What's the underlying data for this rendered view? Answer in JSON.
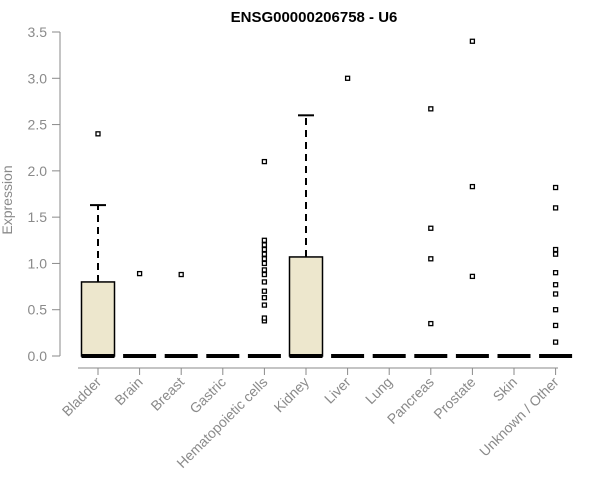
{
  "chart_data": {
    "type": "boxplot",
    "title": "ENSG00000206758 - U6",
    "xlabel": "",
    "ylabel": "Expression",
    "ylim": [
      0,
      3.5
    ],
    "yticks": [
      "0.0",
      "0.5",
      "1.0",
      "1.5",
      "2.0",
      "2.5",
      "3.0",
      "3.5"
    ],
    "grid": false,
    "categories": [
      "Bladder",
      "Brain",
      "Breast",
      "Gastric",
      "Hematopoietic cells",
      "Kidney",
      "Liver",
      "Lung",
      "Pancreas",
      "Prostate",
      "Skin",
      "Unknown / Other"
    ],
    "boxes": [
      {
        "q1": 0,
        "median": 0,
        "q3": 0.8,
        "whisker_low": 0,
        "whisker_high": 1.63,
        "outliers": [
          2.4
        ]
      },
      {
        "q1": 0,
        "median": 0,
        "q3": 0,
        "whisker_low": 0,
        "whisker_high": 0,
        "outliers": [
          0.89
        ]
      },
      {
        "q1": 0,
        "median": 0,
        "q3": 0,
        "whisker_low": 0,
        "whisker_high": 0,
        "outliers": [
          0.88
        ]
      },
      {
        "q1": 0,
        "median": 0,
        "q3": 0,
        "whisker_low": 0,
        "whisker_high": 0,
        "outliers": []
      },
      {
        "q1": 0,
        "median": 0,
        "q3": 0,
        "whisker_low": 0,
        "whisker_high": 0,
        "outliers": [
          0.38,
          0.41,
          0.55,
          0.63,
          0.7,
          0.8,
          0.88,
          0.93,
          1.0,
          1.05,
          1.1,
          1.15,
          1.2,
          1.25,
          2.1
        ]
      },
      {
        "q1": 0,
        "median": 0,
        "q3": 1.07,
        "whisker_low": 0,
        "whisker_high": 2.6,
        "outliers": []
      },
      {
        "q1": 0,
        "median": 0,
        "q3": 0,
        "whisker_low": 0,
        "whisker_high": 0,
        "outliers": [
          3.0
        ]
      },
      {
        "q1": 0,
        "median": 0,
        "q3": 0,
        "whisker_low": 0,
        "whisker_high": 0,
        "outliers": []
      },
      {
        "q1": 0,
        "median": 0,
        "q3": 0,
        "whisker_low": 0,
        "whisker_high": 0,
        "outliers": [
          0.35,
          1.05,
          1.38,
          2.67
        ]
      },
      {
        "q1": 0,
        "median": 0,
        "q3": 0,
        "whisker_low": 0,
        "whisker_high": 0,
        "outliers": [
          0.86,
          1.83,
          3.4
        ]
      },
      {
        "q1": 0,
        "median": 0,
        "q3": 0,
        "whisker_low": 0,
        "whisker_high": 0,
        "outliers": []
      },
      {
        "q1": 0,
        "median": 0,
        "q3": 0,
        "whisker_low": 0,
        "whisker_high": 0,
        "outliers": [
          0.15,
          0.33,
          0.5,
          0.67,
          0.77,
          0.9,
          1.1,
          1.15,
          1.6,
          1.82
        ]
      }
    ],
    "colors": {
      "box_fill": "#ede7cd",
      "axis": "#8a8a8a",
      "ink": "#000000"
    }
  }
}
